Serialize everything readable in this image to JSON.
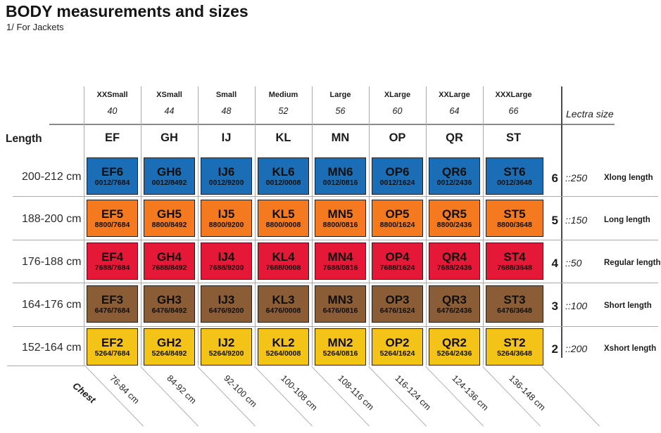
{
  "title": "BODY measurements and sizes",
  "subtitle": "1/ For Jackets",
  "length_header": "Length",
  "lectra_header": "Lectra size",
  "chest_header": "Chest",
  "colors": {
    "row_xlong": "#1B6EB5",
    "row_long": "#F4791F",
    "row_regular": "#E51937",
    "row_short": "#8A5D37",
    "row_xshort": "#F4C318",
    "grid_line": "#AAAAAA",
    "cell_border": "#1E1E1E"
  },
  "columns": [
    {
      "name": "XXSmall",
      "number": "40",
      "code": "EF",
      "chest": "76-84 cm"
    },
    {
      "name": "XSmall",
      "number": "44",
      "code": "GH",
      "chest": "84-92 cm"
    },
    {
      "name": "Small",
      "number": "48",
      "code": "IJ",
      "chest": "92-100 cm"
    },
    {
      "name": "Medium",
      "number": "52",
      "code": "KL",
      "chest": "100-108 cm"
    },
    {
      "name": "Large",
      "number": "56",
      "code": "MN",
      "chest": "108-116 cm"
    },
    {
      "name": "XLarge",
      "number": "60",
      "code": "OP",
      "chest": "116-124 cm"
    },
    {
      "name": "XXLarge",
      "number": "64",
      "code": "QR",
      "chest": "124-136 cm"
    },
    {
      "name": "XXXLarge",
      "number": "66",
      "code": "ST",
      "chest": "136-148 cm"
    }
  ],
  "rows": [
    {
      "length": "200-212 cm",
      "num": "6",
      "lectra": "::250",
      "label": "Xlong length",
      "color": "#1B6EB5",
      "cells": [
        {
          "code": "EF6",
          "ref": "0012/7684"
        },
        {
          "code": "GH6",
          "ref": "0012/8492"
        },
        {
          "code": "IJ6",
          "ref": "0012/9200"
        },
        {
          "code": "KL6",
          "ref": "0012/0008"
        },
        {
          "code": "MN6",
          "ref": "0012/0816"
        },
        {
          "code": "OP6",
          "ref": "0012/1624"
        },
        {
          "code": "QR6",
          "ref": "0012/2436"
        },
        {
          "code": "ST6",
          "ref": "0012/3648"
        }
      ]
    },
    {
      "length": "188-200 cm",
      "num": "5",
      "lectra": "::150",
      "label": "Long length",
      "color": "#F4791F",
      "cells": [
        {
          "code": "EF5",
          "ref": "8800/7684"
        },
        {
          "code": "GH5",
          "ref": "8800/8492"
        },
        {
          "code": "IJ5",
          "ref": "8800/9200"
        },
        {
          "code": "KL5",
          "ref": "8800/0008"
        },
        {
          "code": "MN5",
          "ref": "8800/0816"
        },
        {
          "code": "OP5",
          "ref": "8800/1624"
        },
        {
          "code": "QR5",
          "ref": "8800/2436"
        },
        {
          "code": "ST5",
          "ref": "8800/3648"
        }
      ]
    },
    {
      "length": "176-188 cm",
      "num": "4",
      "lectra": "::50",
      "label": "Regular length",
      "color": "#E51937",
      "cells": [
        {
          "code": "EF4",
          "ref": "7688/7684"
        },
        {
          "code": "GH4",
          "ref": "7688/8492"
        },
        {
          "code": "IJ4",
          "ref": "7688/9200"
        },
        {
          "code": "KL4",
          "ref": "7688/0008"
        },
        {
          "code": "MN4",
          "ref": "7688/0816"
        },
        {
          "code": "OP4",
          "ref": "7688/1624"
        },
        {
          "code": "QR4",
          "ref": "7688/2436"
        },
        {
          "code": "ST4",
          "ref": "7688/3648"
        }
      ]
    },
    {
      "length": "164-176 cm",
      "num": "3",
      "lectra": "::100",
      "label": "Short length",
      "color": "#8A5D37",
      "cells": [
        {
          "code": "EF3",
          "ref": "6476/7684"
        },
        {
          "code": "GH3",
          "ref": "6476/8492"
        },
        {
          "code": "IJ3",
          "ref": "6476/9200"
        },
        {
          "code": "KL3",
          "ref": "6476/0008"
        },
        {
          "code": "MN3",
          "ref": "6476/0816"
        },
        {
          "code": "OP3",
          "ref": "6476/1624"
        },
        {
          "code": "QR3",
          "ref": "6476/2436"
        },
        {
          "code": "ST3",
          "ref": "6476/3648"
        }
      ]
    },
    {
      "length": "152-164 cm",
      "num": "2",
      "lectra": "::200",
      "label": "Xshort length",
      "color": "#F4C318",
      "cells": [
        {
          "code": "EF2",
          "ref": "5264/7684"
        },
        {
          "code": "GH2",
          "ref": "5264/8492"
        },
        {
          "code": "IJ2",
          "ref": "5264/9200"
        },
        {
          "code": "KL2",
          "ref": "5264/0008"
        },
        {
          "code": "MN2",
          "ref": "5264/0816"
        },
        {
          "code": "OP2",
          "ref": "5264/1624"
        },
        {
          "code": "QR2",
          "ref": "5264/2436"
        },
        {
          "code": "ST2",
          "ref": "5264/3648"
        }
      ]
    }
  ]
}
